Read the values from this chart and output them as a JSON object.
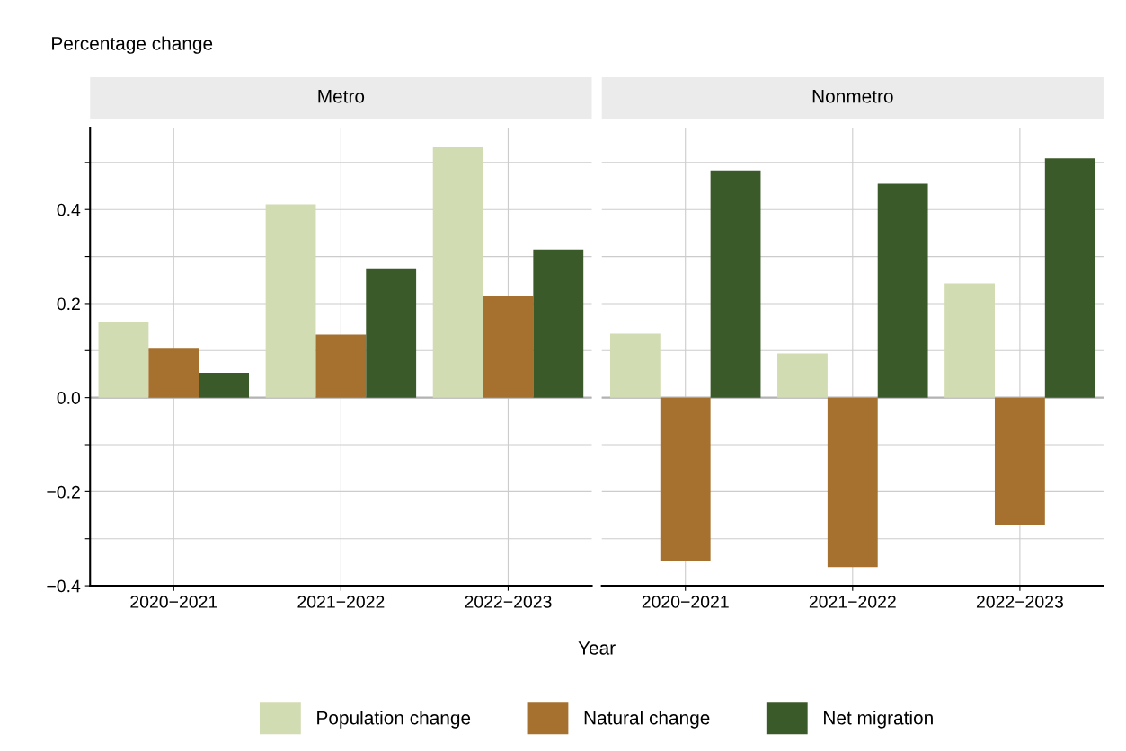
{
  "chart_data": [
    {
      "type": "bar",
      "title": "Metro",
      "xlabel": "Year",
      "ylabel": "Percentage change",
      "categories": [
        "2020−2021",
        "2021−2022",
        "2022−2023"
      ],
      "series": [
        {
          "name": "Population change",
          "color": "#d2dcb2",
          "values": [
            0.16,
            0.411,
            0.532
          ]
        },
        {
          "name": "Natural change",
          "color": "#a6712e",
          "values": [
            0.106,
            0.134,
            0.217
          ]
        },
        {
          "name": "Net migration",
          "color": "#3b5a29",
          "values": [
            0.053,
            0.275,
            0.315
          ]
        }
      ],
      "ylim": [
        -0.4,
        0.574
      ],
      "yticks": [
        {
          "value": -0.4,
          "label": "−0.4"
        },
        {
          "value": -0.3,
          "label": null
        },
        {
          "value": -0.2,
          "label": "−0.2"
        },
        {
          "value": -0.1,
          "label": null
        },
        {
          "value": 0.0,
          "label": "0.0"
        },
        {
          "value": 0.1,
          "label": null
        },
        {
          "value": 0.2,
          "label": "0.2"
        },
        {
          "value": 0.3,
          "label": null
        },
        {
          "value": 0.4,
          "label": "0.4"
        },
        {
          "value": 0.5,
          "label": null
        }
      ],
      "ref_lines": [
        {
          "axis": "y",
          "value": 0,
          "color": "#b3b3b3"
        }
      ],
      "grid": true,
      "legend": "bottom"
    },
    {
      "type": "bar",
      "title": "Nonmetro",
      "categories": [
        "2020−2021",
        "2021−2022",
        "2022−2023"
      ],
      "series": [
        {
          "color": "#d2dcb2",
          "values": [
            0.136,
            0.094,
            0.243
          ]
        },
        {
          "color": "#a6712e",
          "values": [
            -0.347,
            -0.36,
            -0.27
          ]
        },
        {
          "color": "#3b5a29",
          "values": [
            0.483,
            0.455,
            0.509
          ]
        }
      ],
      "ylim": [
        -0.4,
        0.574
      ],
      "yticks": [
        -0.4,
        -0.3,
        -0.2,
        -0.1,
        0,
        0.1,
        0.2,
        0.3,
        0.4,
        0.5
      ],
      "ref_lines": [
        {
          "axis": "y",
          "value": 0,
          "color": "#b3b3b3"
        }
      ],
      "grid": true,
      "tick_labels": "x"
    }
  ]
}
